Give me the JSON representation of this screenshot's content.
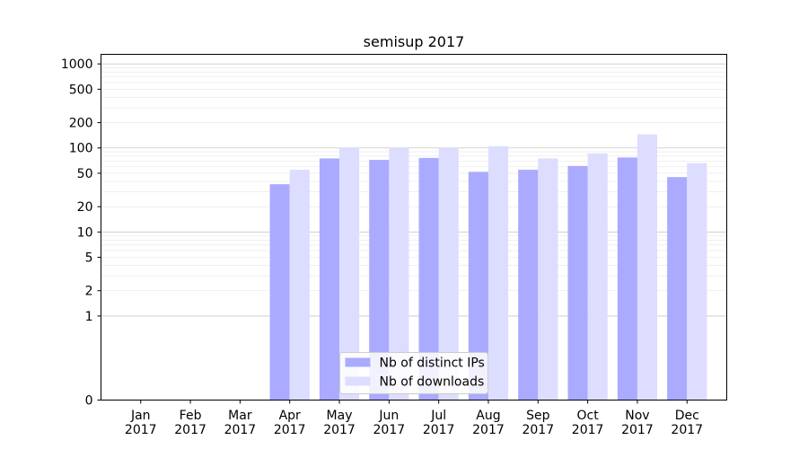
{
  "chart_data": {
    "type": "bar",
    "title": "semisup 2017",
    "xlabel": "",
    "ylabel": "",
    "yscale": "symlog",
    "ylim": [
      0,
      1300
    ],
    "grid": true,
    "legend_placement": "bottom-center",
    "categories": [
      {
        "month": "Jan",
        "year": "2017"
      },
      {
        "month": "Feb",
        "year": "2017"
      },
      {
        "month": "Mar",
        "year": "2017"
      },
      {
        "month": "Apr",
        "year": "2017"
      },
      {
        "month": "May",
        "year": "2017"
      },
      {
        "month": "Jun",
        "year": "2017"
      },
      {
        "month": "Jul",
        "year": "2017"
      },
      {
        "month": "Aug",
        "year": "2017"
      },
      {
        "month": "Sep",
        "year": "2017"
      },
      {
        "month": "Oct",
        "year": "2017"
      },
      {
        "month": "Nov",
        "year": "2017"
      },
      {
        "month": "Dec",
        "year": "2017"
      }
    ],
    "yticks": [
      "0",
      "1",
      "2",
      "5",
      "10",
      "20",
      "50",
      "100",
      "200",
      "500",
      "1000"
    ],
    "series": [
      {
        "name": "Nb of distinct IPs",
        "color": "#aaaaff",
        "values": [
          0,
          0,
          0,
          37,
          75,
          72,
          76,
          52,
          55,
          61,
          77,
          45
        ]
      },
      {
        "name": "Nb of downloads",
        "color": "#ddddff",
        "values": [
          0,
          0,
          0,
          55,
          100,
          100,
          100,
          105,
          75,
          86,
          145,
          66
        ]
      }
    ]
  }
}
